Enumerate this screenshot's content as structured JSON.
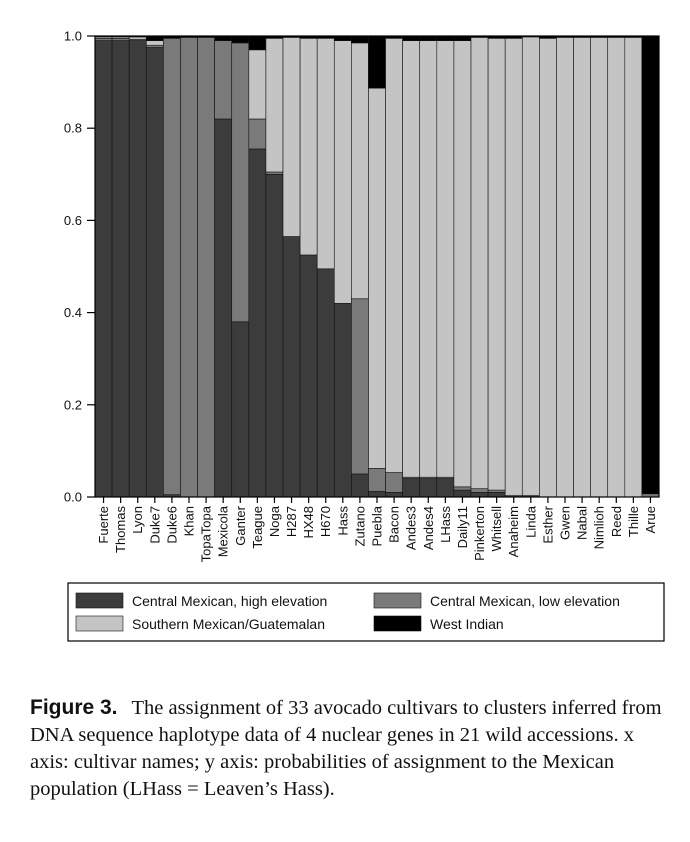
{
  "chart_data": {
    "type": "bar",
    "stacked": true,
    "ylim": [
      0,
      1.0
    ],
    "yticks": [
      "0.0",
      "0.2",
      "0.4",
      "0.6",
      "0.8",
      "1.0"
    ],
    "categories": [
      "Fuerte",
      "Thomas",
      "Lyon",
      "Duke7",
      "Duke6",
      "Khan",
      "TopaTopa",
      "Mexicola",
      "Ganter",
      "Teague",
      "Noga",
      "H287",
      "HX48",
      "H670",
      "Hass",
      "Zutano",
      "Puebla",
      "Bacon",
      "Andes3",
      "Andes4",
      "LHass",
      "Daily11",
      "Pinkerton",
      "Whitsell",
      "Anaheim",
      "Linda",
      "Esther",
      "Gwen",
      "Nabal",
      "Nimlioh",
      "Reed",
      "Thille",
      "Arue"
    ],
    "series": [
      {
        "name": "Central Mexican, high elevation",
        "color": "#3c3c3c",
        "values": [
          0.99,
          0.99,
          0.99,
          0.975,
          0.005,
          0,
          0,
          0.82,
          0.38,
          0.755,
          0.7,
          0.565,
          0.525,
          0.495,
          0.42,
          0.05,
          0.012,
          0.01,
          0.04,
          0.04,
          0.04,
          0.015,
          0.01,
          0.01,
          0.003,
          0.003,
          0,
          0,
          0,
          0,
          0,
          0,
          0
        ]
      },
      {
        "name": "Central Mexican, low elevation",
        "color": "#7a7a7a",
        "values": [
          0.005,
          0.005,
          0.003,
          0.005,
          0.99,
          0.997,
          0.997,
          0.17,
          0.605,
          0.065,
          0.005,
          0,
          0,
          0,
          0,
          0.38,
          0.05,
          0.043,
          0.003,
          0.003,
          0.003,
          0.007,
          0.008,
          0.005,
          0,
          0,
          0,
          0,
          0,
          0,
          0,
          0,
          0.007
        ]
      },
      {
        "name": "Southern Mexican/Guatemalan",
        "color": "#c4c4c4",
        "values": [
          0.003,
          0.003,
          0.005,
          0.01,
          0,
          0,
          0,
          0,
          0,
          0.15,
          0.29,
          0.432,
          0.47,
          0.5,
          0.57,
          0.555,
          0.825,
          0.942,
          0.947,
          0.947,
          0.947,
          0.968,
          0.979,
          0.98,
          0.992,
          0.995,
          0.995,
          0.997,
          0.997,
          0.997,
          0.997,
          0.997,
          0
        ]
      },
      {
        "name": "West Indian",
        "color": "#000000",
        "values": [
          0.002,
          0.002,
          0.002,
          0.01,
          0.005,
          0.003,
          0.003,
          0.01,
          0.015,
          0.03,
          0.005,
          0.003,
          0.005,
          0.005,
          0.01,
          0.015,
          0.113,
          0.005,
          0.01,
          0.01,
          0.01,
          0.01,
          0.003,
          0.005,
          0.005,
          0.002,
          0.005,
          0.003,
          0.003,
          0.003,
          0.003,
          0.003,
          0.993
        ]
      }
    ],
    "legend_position": "bottom"
  },
  "caption": {
    "label": "Figure 3.",
    "text": "The assignment of 33 avocado cultivars to clusters inferred from DNA sequence haplotype data of 4 nuclear genes in 21 wild accessions. x axis: cultivar names; y axis: probabilities of assignment to the Mexican population (LHass = Leaven’s Hass)."
  }
}
